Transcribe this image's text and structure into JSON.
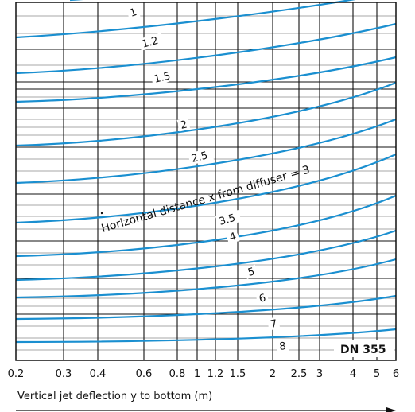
{
  "chart_data": {
    "type": "line",
    "title": "",
    "xlabel": "Vertical jet deflection y to bottom (m)",
    "ylabel": "",
    "x_ticks": [
      "0.2",
      "0.3",
      "0.4",
      "0.6",
      "0.8",
      "1",
      "1.2",
      "1.5",
      "2",
      "2.5",
      "3",
      "4",
      "5",
      "6"
    ],
    "x_scale": "log",
    "grid": true,
    "series": [
      {
        "name": "1",
        "label": "1"
      },
      {
        "name": "1.2",
        "label": "1.2"
      },
      {
        "name": "1.5",
        "label": "1.5"
      },
      {
        "name": "2",
        "label": "2"
      },
      {
        "name": "2.5",
        "label": "2.5"
      },
      {
        "name": "3",
        "label": "3"
      },
      {
        "name": "3.5",
        "label": "3.5"
      },
      {
        "name": "4",
        "label": "4"
      },
      {
        "name": "5",
        "label": "5"
      },
      {
        "name": "6",
        "label": "6"
      },
      {
        "name": "7",
        "label": "7"
      },
      {
        "name": "8",
        "label": "8"
      }
    ],
    "annotation": "Horizontal distance x from diffuser = 3",
    "badge": "DN 355",
    "line_color": "#1a8fd0"
  }
}
